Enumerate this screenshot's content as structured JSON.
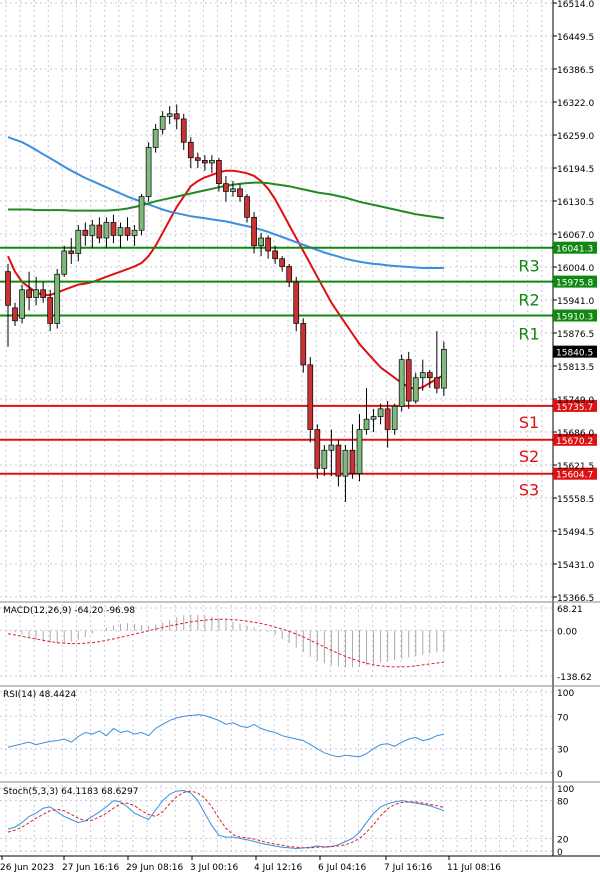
{
  "colors": {
    "up_candle": "#7dbb7d",
    "down_candle": "#c83232",
    "ma_red": "#dd1111",
    "ma_blue": "#3a8fe0",
    "ma_green": "#228822",
    "resistance": "#118811",
    "support": "#dd1111",
    "macd_bars": "#aaaaaa",
    "macd_signal": "#dd2222",
    "rsi": "#3a8fe0",
    "stoch_k": "#3a8fe0",
    "stoch_d": "#dd2222",
    "grid": "#c8c8d8",
    "axis": "#000000"
  },
  "chart_data": [
    {
      "type": "candlestick",
      "panel": "price",
      "y_scale": [
        15366.5,
        16514.0
      ],
      "y_ticks": [
        "16514.0",
        "16449.5",
        "16386.5",
        "16322.0",
        "16259.0",
        "16194.5",
        "16130.5",
        "16067.0",
        "16004.0",
        "15941.0",
        "15876.5",
        "15813.5",
        "15749.0",
        "15686.0",
        "15621.5",
        "15558.5",
        "15494.5",
        "15431.0",
        "15366.5"
      ],
      "x_labels": [
        "26 Jun 2023",
        "27 Jun 16:16",
        "29 Jun 08:16",
        "3 Jul 00:16",
        "4 Jul 12:16",
        "6 Jul 04:16",
        "7 Jul 16:16",
        "11 Jul 08:16"
      ],
      "candles": [
        {
          "o": 15995,
          "h": 16010,
          "l": 15850,
          "c": 15930
        },
        {
          "o": 15925,
          "h": 15935,
          "l": 15890,
          "c": 15900
        },
        {
          "o": 15905,
          "h": 15970,
          "l": 15895,
          "c": 15960
        },
        {
          "o": 15960,
          "h": 15995,
          "l": 15920,
          "c": 15945
        },
        {
          "o": 15945,
          "h": 15985,
          "l": 15930,
          "c": 15960
        },
        {
          "o": 15960,
          "h": 15975,
          "l": 15935,
          "c": 15945
        },
        {
          "o": 15945,
          "h": 15960,
          "l": 15880,
          "c": 15895
        },
        {
          "o": 15895,
          "h": 16000,
          "l": 15885,
          "c": 15990
        },
        {
          "o": 15990,
          "h": 16045,
          "l": 15985,
          "c": 16035
        },
        {
          "o": 16035,
          "h": 16060,
          "l": 16010,
          "c": 16030
        },
        {
          "o": 16030,
          "h": 16085,
          "l": 16015,
          "c": 16075
        },
        {
          "o": 16075,
          "h": 16090,
          "l": 16045,
          "c": 16065
        },
        {
          "o": 16065,
          "h": 16095,
          "l": 16040,
          "c": 16085
        },
        {
          "o": 16085,
          "h": 16100,
          "l": 16050,
          "c": 16060
        },
        {
          "o": 16060,
          "h": 16100,
          "l": 16040,
          "c": 16090
        },
        {
          "o": 16090,
          "h": 16105,
          "l": 16050,
          "c": 16065
        },
        {
          "o": 16065,
          "h": 16090,
          "l": 16040,
          "c": 16080
        },
        {
          "o": 16080,
          "h": 16100,
          "l": 16055,
          "c": 16065
        },
        {
          "o": 16065,
          "h": 16085,
          "l": 16045,
          "c": 16075
        },
        {
          "o": 16075,
          "h": 16145,
          "l": 16065,
          "c": 16140
        },
        {
          "o": 16140,
          "h": 16245,
          "l": 16130,
          "c": 16235
        },
        {
          "o": 16235,
          "h": 16280,
          "l": 16225,
          "c": 16270
        },
        {
          "o": 16270,
          "h": 16305,
          "l": 16260,
          "c": 16295
        },
        {
          "o": 16295,
          "h": 16315,
          "l": 16280,
          "c": 16300
        },
        {
          "o": 16300,
          "h": 16318,
          "l": 16270,
          "c": 16290
        },
        {
          "o": 16290,
          "h": 16300,
          "l": 16230,
          "c": 16245
        },
        {
          "o": 16245,
          "h": 16255,
          "l": 16195,
          "c": 16215
        },
        {
          "o": 16215,
          "h": 16225,
          "l": 16195,
          "c": 16210
        },
        {
          "o": 16210,
          "h": 16220,
          "l": 16190,
          "c": 16205
        },
        {
          "o": 16205,
          "h": 16220,
          "l": 16185,
          "c": 16210
        },
        {
          "o": 16210,
          "h": 16215,
          "l": 16150,
          "c": 16165
        },
        {
          "o": 16165,
          "h": 16180,
          "l": 16130,
          "c": 16150
        },
        {
          "o": 16150,
          "h": 16170,
          "l": 16140,
          "c": 16155
        },
        {
          "o": 16155,
          "h": 16165,
          "l": 16130,
          "c": 16140
        },
        {
          "o": 16140,
          "h": 16145,
          "l": 16090,
          "c": 16100
        },
        {
          "o": 16100,
          "h": 16110,
          "l": 16030,
          "c": 16045
        },
        {
          "o": 16045,
          "h": 16070,
          "l": 16025,
          "c": 16060
        },
        {
          "o": 16060,
          "h": 16065,
          "l": 16020,
          "c": 16035
        },
        {
          "o": 16035,
          "h": 16045,
          "l": 16010,
          "c": 16020
        },
        {
          "o": 16020,
          "h": 16025,
          "l": 15995,
          "c": 16005
        },
        {
          "o": 16005,
          "h": 16010,
          "l": 15965,
          "c": 15975
        },
        {
          "o": 15975,
          "h": 15985,
          "l": 15880,
          "c": 15895
        },
        {
          "o": 15895,
          "h": 15905,
          "l": 15800,
          "c": 15815
        },
        {
          "o": 15815,
          "h": 15830,
          "l": 15665,
          "c": 15690
        },
        {
          "o": 15690,
          "h": 15700,
          "l": 15595,
          "c": 15615
        },
        {
          "o": 15615,
          "h": 15660,
          "l": 15600,
          "c": 15650
        },
        {
          "o": 15650,
          "h": 15690,
          "l": 15600,
          "c": 15660
        },
        {
          "o": 15660,
          "h": 15670,
          "l": 15580,
          "c": 15600
        },
        {
          "o": 15600,
          "h": 15660,
          "l": 15550,
          "c": 15650
        },
        {
          "o": 15650,
          "h": 15700,
          "l": 15595,
          "c": 15605
        },
        {
          "o": 15605,
          "h": 15720,
          "l": 15590,
          "c": 15690
        },
        {
          "o": 15690,
          "h": 15770,
          "l": 15680,
          "c": 15710
        },
        {
          "o": 15710,
          "h": 15730,
          "l": 15685,
          "c": 15715
        },
        {
          "o": 15715,
          "h": 15740,
          "l": 15700,
          "c": 15730
        },
        {
          "o": 15730,
          "h": 15745,
          "l": 15655,
          "c": 15690
        },
        {
          "o": 15690,
          "h": 15740,
          "l": 15680,
          "c": 15735
        },
        {
          "o": 15735,
          "h": 15835,
          "l": 15725,
          "c": 15825
        },
        {
          "o": 15825,
          "h": 15840,
          "l": 15730,
          "c": 15745
        },
        {
          "o": 15745,
          "h": 15800,
          "l": 15740,
          "c": 15790
        },
        {
          "o": 15790,
          "h": 15825,
          "l": 15765,
          "c": 15800
        },
        {
          "o": 15800,
          "h": 15805,
          "l": 15770,
          "c": 15790
        },
        {
          "o": 15790,
          "h": 15880,
          "l": 15760,
          "c": 15770
        },
        {
          "o": 15770,
          "h": 15860,
          "l": 15755,
          "c": 15845
        }
      ],
      "series": [
        {
          "color_key": "ma_red",
          "values": [
            16025,
            15995,
            15975,
            15965,
            15955,
            15950,
            15950,
            15955,
            15960,
            15965,
            15970,
            15972,
            15975,
            15980,
            15985,
            15990,
            15995,
            16000,
            16005,
            16012,
            16025,
            16045,
            16070,
            16095,
            16120,
            16140,
            16160,
            16170,
            16177,
            16182,
            16187,
            16190,
            16190,
            16188,
            16185,
            16180,
            16170,
            16155,
            16135,
            16110,
            16085,
            16060,
            16035,
            16010,
            15985,
            15960,
            15935,
            15915,
            15895,
            15875,
            15855,
            15840,
            15825,
            15810,
            15800,
            15790,
            15780,
            15772,
            15768,
            15772,
            15780,
            15788,
            15795
          ]
        },
        {
          "color_key": "ma_blue",
          "values": [
            16255,
            16250,
            16245,
            16238,
            16230,
            16222,
            16214,
            16206,
            16198,
            16190,
            16183,
            16176,
            16170,
            16164,
            16158,
            16152,
            16146,
            16140,
            16135,
            16130,
            16125,
            16120,
            16115,
            16111,
            16108,
            16105,
            16102,
            16100,
            16098,
            16096,
            16094,
            16092,
            16089,
            16086,
            16083,
            16080,
            16076,
            16072,
            16067,
            16062,
            16057,
            16052,
            16047,
            16042,
            16037,
            16032,
            16028,
            16024,
            16020,
            16017,
            16014,
            16012,
            16010,
            16009,
            16007,
            16006,
            16005,
            16004,
            16003,
            16002,
            16002,
            16002,
            16002
          ]
        },
        {
          "color_key": "ma_green",
          "values": [
            16115,
            16115,
            16115,
            16115,
            16114,
            16114,
            16114,
            16114,
            16114,
            16113,
            16113,
            16113,
            16113,
            16113,
            16113,
            16114,
            16115,
            16117,
            16120,
            16123,
            16127,
            16131,
            16134,
            16137,
            16140,
            16143,
            16146,
            16149,
            16152,
            16155,
            16158,
            16161,
            16163,
            16165,
            16166,
            16167,
            16167,
            16166,
            16164,
            16162,
            16160,
            16157,
            16154,
            16151,
            16148,
            16146,
            16144,
            16141,
            16138,
            16134,
            16130,
            16127,
            16124,
            16121,
            16118,
            16115,
            16112,
            16109,
            16106,
            16104,
            16102,
            16100,
            16098
          ]
        }
      ],
      "levels": [
        {
          "label": "R3",
          "value": 16041.3,
          "tag": "16041.3",
          "kind": "resistance"
        },
        {
          "label": "R2",
          "value": 15975.8,
          "tag": "15975.8",
          "kind": "resistance"
        },
        {
          "label": "R1",
          "value": 15910.3,
          "tag": "15910.3",
          "kind": "resistance"
        },
        {
          "label": "S1",
          "value": 15735.7,
          "tag": "15735.7",
          "kind": "support"
        },
        {
          "label": "S2",
          "value": 15670.2,
          "tag": "15670.2",
          "kind": "support"
        },
        {
          "label": "S3",
          "value": 15604.7,
          "tag": "15604.7",
          "kind": "support"
        }
      ],
      "current_price": {
        "value": 15840.5,
        "tag": "15840.5"
      }
    },
    {
      "type": "bar",
      "panel": "macd",
      "title": "MACD(12,26,9) -64.20 -96.98",
      "y_scale": [
        -138.62,
        68.21
      ],
      "y_ticks": [
        "68.21",
        "0.00",
        "-138.62"
      ],
      "histogram": [
        2,
        -5,
        -12,
        -20,
        -28,
        -34,
        -38,
        -40,
        -38,
        -34,
        -28,
        -20,
        -10,
        0,
        8,
        15,
        20,
        22,
        20,
        16,
        14,
        18,
        24,
        32,
        40,
        46,
        48,
        48,
        46,
        42,
        38,
        32,
        26,
        20,
        14,
        8,
        2,
        -5,
        -14,
        -26,
        -38,
        -52,
        -66,
        -80,
        -92,
        -100,
        -106,
        -110,
        -112,
        -112,
        -110,
        -106,
        -102,
        -98,
        -94,
        -90,
        -86,
        -82,
        -78,
        -74,
        -70,
        -67,
        -64
      ],
      "signal": [
        -10,
        -14,
        -18,
        -22,
        -26,
        -30,
        -34,
        -37,
        -39,
        -40,
        -40,
        -39,
        -37,
        -34,
        -30,
        -26,
        -21,
        -16,
        -11,
        -6,
        -1,
        4,
        9,
        14,
        18,
        22,
        26,
        29,
        31,
        33,
        34,
        34,
        33,
        31,
        28,
        25,
        21,
        16,
        10,
        4,
        -3,
        -11,
        -20,
        -30,
        -40,
        -50,
        -60,
        -70,
        -79,
        -87,
        -94,
        -100,
        -105,
        -108,
        -110,
        -111,
        -111,
        -110,
        -108,
        -105,
        -102,
        -99,
        -97
      ]
    },
    {
      "type": "line",
      "panel": "rsi",
      "title": "RSI(14) 48.4424",
      "y_scale": [
        0,
        100
      ],
      "y_ticks": [
        "100",
        "70",
        "30",
        "0"
      ],
      "values": [
        32,
        34,
        36,
        38,
        35,
        37,
        39,
        40,
        42,
        38,
        45,
        50,
        48,
        52,
        46,
        55,
        50,
        52,
        48,
        50,
        46,
        55,
        60,
        65,
        68,
        70,
        71,
        72,
        71,
        68,
        65,
        60,
        62,
        58,
        56,
        60,
        55,
        52,
        50,
        46,
        44,
        42,
        40,
        35,
        30,
        25,
        22,
        20,
        22,
        21,
        20,
        24,
        30,
        35,
        36,
        33,
        38,
        42,
        44,
        40,
        42,
        46,
        48
      ]
    },
    {
      "type": "line",
      "panel": "stoch",
      "title": "Stoch(5,3,3) 64.1183 68.6297",
      "y_scale": [
        0,
        100
      ],
      "y_ticks": [
        "100",
        "80",
        "20",
        "0"
      ],
      "k": [
        35,
        38,
        45,
        55,
        60,
        68,
        70,
        62,
        55,
        50,
        45,
        48,
        55,
        62,
        70,
        80,
        78,
        70,
        60,
        55,
        50,
        65,
        80,
        90,
        95,
        96,
        92,
        80,
        60,
        40,
        25,
        22,
        22,
        20,
        18,
        15,
        12,
        10,
        8,
        6,
        5,
        4,
        5,
        6,
        8,
        6,
        7,
        10,
        15,
        20,
        30,
        45,
        60,
        70,
        75,
        78,
        80,
        78,
        76,
        74,
        72,
        68,
        64
      ],
      "d": [
        30,
        33,
        38,
        45,
        52,
        58,
        64,
        66,
        64,
        58,
        52,
        48,
        49,
        54,
        60,
        68,
        75,
        76,
        72,
        64,
        58,
        55,
        62,
        75,
        86,
        93,
        95,
        92,
        84,
        70,
        52,
        36,
        26,
        22,
        21,
        19,
        16,
        13,
        11,
        9,
        7,
        6,
        5,
        5,
        6,
        7,
        7,
        8,
        10,
        14,
        20,
        30,
        42,
        56,
        67,
        74,
        77,
        78,
        78,
        76,
        74,
        72,
        69
      ]
    }
  ]
}
